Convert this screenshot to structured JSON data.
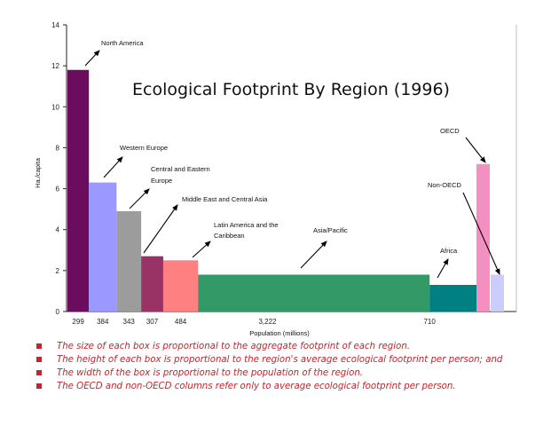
{
  "chart_data": {
    "type": "bar",
    "title": "Ecological Footprint By Region (1996)",
    "xlabel": "Population (millions)",
    "ylabel": "Ha./capita",
    "ylim": [
      0,
      14
    ],
    "yticks": [
      0,
      2,
      4,
      6,
      8,
      10,
      12,
      14
    ],
    "grid": false,
    "series": [
      {
        "label": "North America",
        "population_label": "299",
        "population": 299,
        "value": 11.8,
        "color": "#6b0c5e"
      },
      {
        "label": "Western Europe",
        "population_label": "384",
        "population": 384,
        "value": 6.3,
        "color": "#9b99ff"
      },
      {
        "label": "Central and Eastern Europe",
        "population_label": "343",
        "population": 343,
        "value": 4.9,
        "color": "#9c9c9c"
      },
      {
        "label": "Middle East and Central Asia",
        "population_label": "307",
        "population": 307,
        "value": 2.7,
        "color": "#993366"
      },
      {
        "label": "Latin America and the Caribbean",
        "population_label": "484",
        "population": 484,
        "value": 2.5,
        "color": "#ff8080"
      },
      {
        "label": "Asia/Pacific",
        "population_label": "3,222",
        "population": 3222,
        "value": 1.8,
        "color": "#339966"
      },
      {
        "label": "Africa",
        "population_label": "710",
        "population": 710,
        "value": 1.3,
        "color": "#008080"
      },
      {
        "label": "OECD",
        "population_label": "",
        "value": 7.2,
        "color": "#f48fc2"
      },
      {
        "label": "Non-OECD",
        "population_label": "",
        "value": 1.8,
        "color": "#ccccff"
      }
    ]
  },
  "notes": [
    "The size of each box is proportional to the aggregate footprint of each region.",
    "The height of each box is proportional to the region's average ecological footprint per person; and",
    "The width of the box is proportional to the population of the region.",
    "The OECD and non-OECD columns refer only to average ecological footprint per person."
  ],
  "colors": {
    "note_text": "#c0262d",
    "axis": "#222222"
  }
}
